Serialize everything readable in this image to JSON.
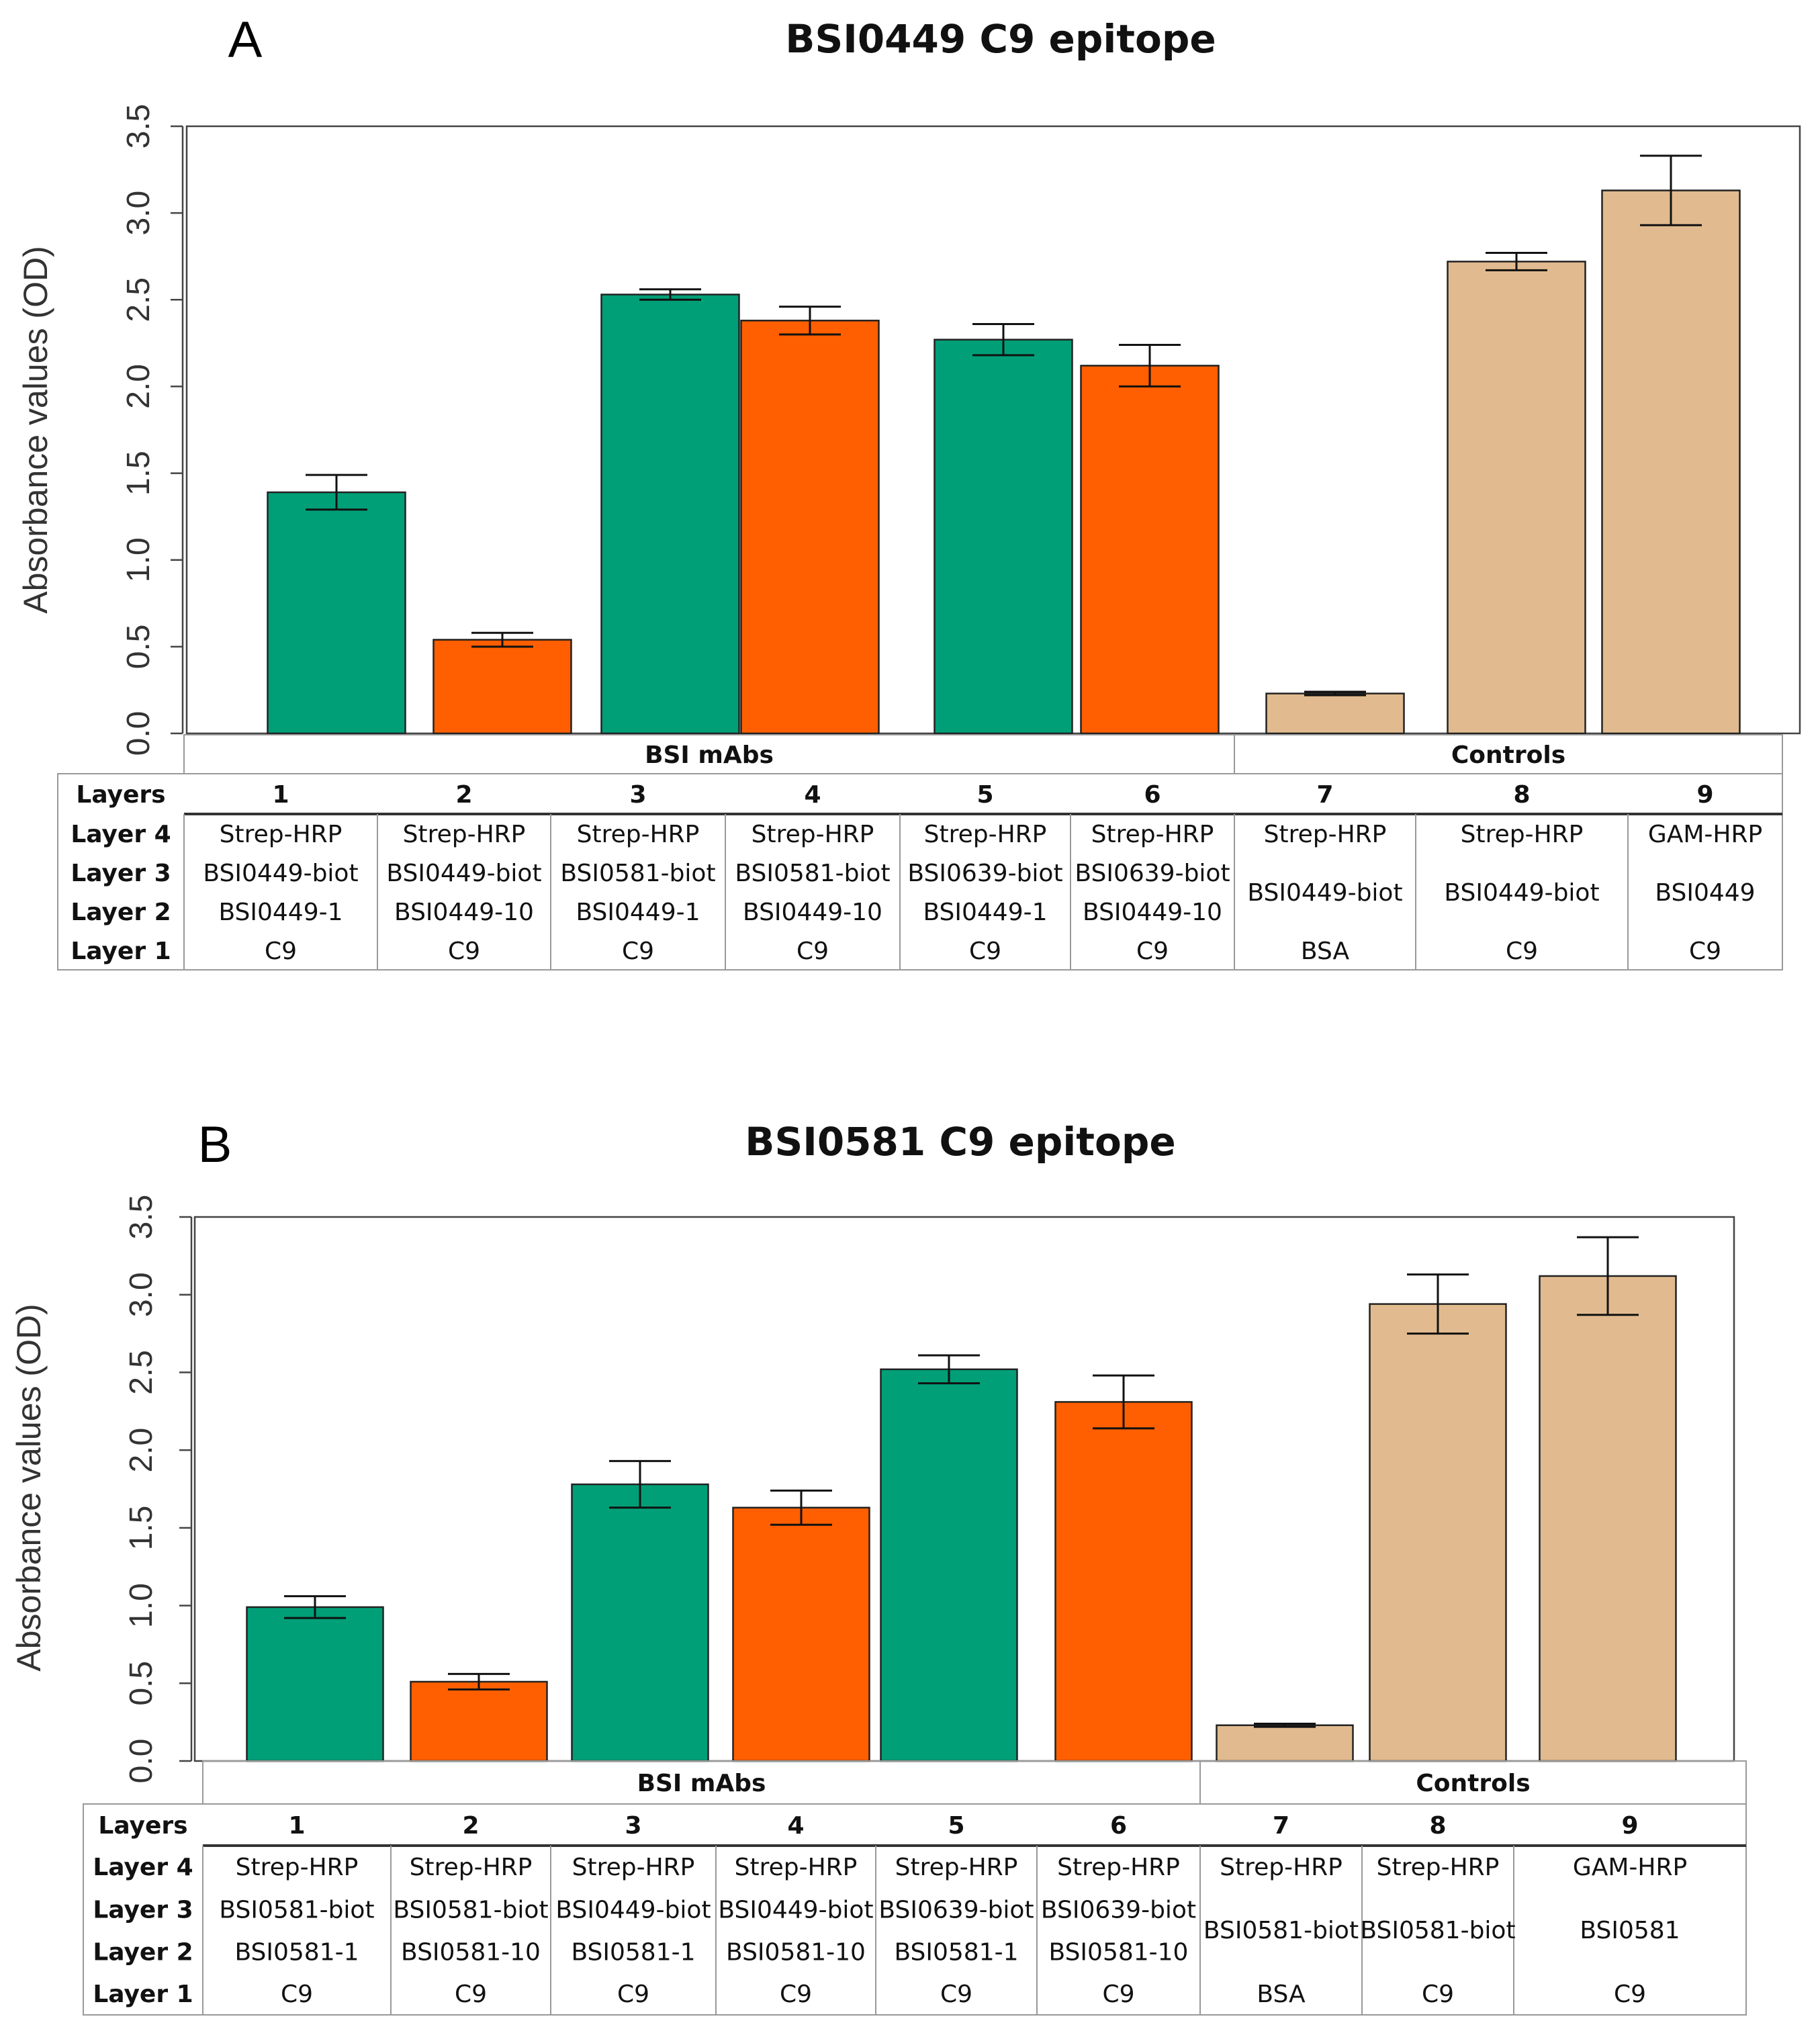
{
  "colors": {
    "green": "#009f77",
    "orange": "#ff5f00",
    "tan": "#e1bb8f"
  },
  "chart_data": [
    {
      "type": "bar",
      "panel": "A",
      "title": "BSI0449 C9 epitope",
      "ylabel": "Absorbance values (OD)",
      "xlabel": "",
      "ylim": [
        0,
        3.5
      ],
      "yticks": [
        "0.0",
        "0.5",
        "1.0",
        "1.5",
        "2.0",
        "2.5",
        "3.0",
        "3.5"
      ],
      "categories": [
        "1",
        "2",
        "3",
        "4",
        "5",
        "6",
        "7",
        "8",
        "9"
      ],
      "values": [
        1.39,
        0.54,
        2.53,
        2.38,
        2.27,
        2.12,
        0.23,
        2.72,
        3.13
      ],
      "errors": [
        0.1,
        0.04,
        0.03,
        0.08,
        0.09,
        0.12,
        0.01,
        0.05,
        0.2
      ],
      "bar_colors": [
        "green",
        "orange",
        "green",
        "orange",
        "green",
        "orange",
        "tan",
        "tan",
        "tan"
      ],
      "group_labels": [
        "BSI mAbs",
        "Controls"
      ],
      "row_header": "Layers",
      "layer_labels": [
        "Layer 4",
        "Layer 3",
        "Layer 2",
        "Layer 1"
      ],
      "layers": {
        "layer4": [
          "Strep-HRP",
          "Strep-HRP",
          "Strep-HRP",
          "Strep-HRP",
          "Strep-HRP",
          "Strep-HRP",
          "Strep-HRP",
          "Strep-HRP",
          "GAM-HRP"
        ],
        "layer3": [
          "BSI0449-biot",
          "BSI0449-biot",
          "BSI0581-biot",
          "BSI0581-biot",
          "BSI0639-biot",
          "BSI0639-biot"
        ],
        "layer2": [
          "BSI0449-1",
          "BSI0449-10",
          "BSI0449-1",
          "BSI0449-10",
          "BSI0449-1",
          "BSI0449-10"
        ],
        "layer23_controls": [
          "BSI0449-biot",
          "BSI0449-biot",
          "BSI0449"
        ],
        "layer1": [
          "C9",
          "C9",
          "C9",
          "C9",
          "C9",
          "C9",
          "BSA",
          "C9",
          "C9"
        ]
      }
    },
    {
      "type": "bar",
      "panel": "B",
      "title": "BSI0581 C9 epitope",
      "ylabel": "Absorbance values (OD)",
      "xlabel": "",
      "ylim": [
        0,
        3.5
      ],
      "yticks": [
        "0.0",
        "0.5",
        "1.0",
        "1.5",
        "2.0",
        "2.5",
        "3.0",
        "3.5"
      ],
      "categories": [
        "1",
        "2",
        "3",
        "4",
        "5",
        "6",
        "7",
        "8",
        "9"
      ],
      "values": [
        0.99,
        0.51,
        1.78,
        1.63,
        2.52,
        2.31,
        0.23,
        2.94,
        3.12
      ],
      "errors": [
        0.07,
        0.05,
        0.15,
        0.11,
        0.09,
        0.17,
        0.01,
        0.19,
        0.25
      ],
      "bar_colors": [
        "green",
        "orange",
        "green",
        "orange",
        "green",
        "orange",
        "tan",
        "tan",
        "tan"
      ],
      "group_labels": [
        "BSI mAbs",
        "Controls"
      ],
      "row_header": "Layers",
      "layer_labels": [
        "Layer 4",
        "Layer 3",
        "Layer 2",
        "Layer 1"
      ],
      "layers": {
        "layer4": [
          "Strep-HRP",
          "Strep-HRP",
          "Strep-HRP",
          "Strep-HRP",
          "Strep-HRP",
          "Strep-HRP",
          "Strep-HRP",
          "Strep-HRP",
          "GAM-HRP"
        ],
        "layer3": [
          "BSI0581-biot",
          "BSI0581-biot",
          "BSI0449-biot",
          "BSI0449-biot",
          "BSI0639-biot",
          "BSI0639-biot"
        ],
        "layer2": [
          "BSI0581-1",
          "BSI0581-10",
          "BSI0581-1",
          "BSI0581-10",
          "BSI0581-1",
          "BSI0581-10"
        ],
        "layer23_controls": [
          "BSI0581-biot",
          "BSI0581-biot",
          "BSI0581"
        ],
        "layer1": [
          "C9",
          "C9",
          "C9",
          "C9",
          "C9",
          "C9",
          "BSA",
          "C9",
          "C9"
        ]
      }
    }
  ]
}
